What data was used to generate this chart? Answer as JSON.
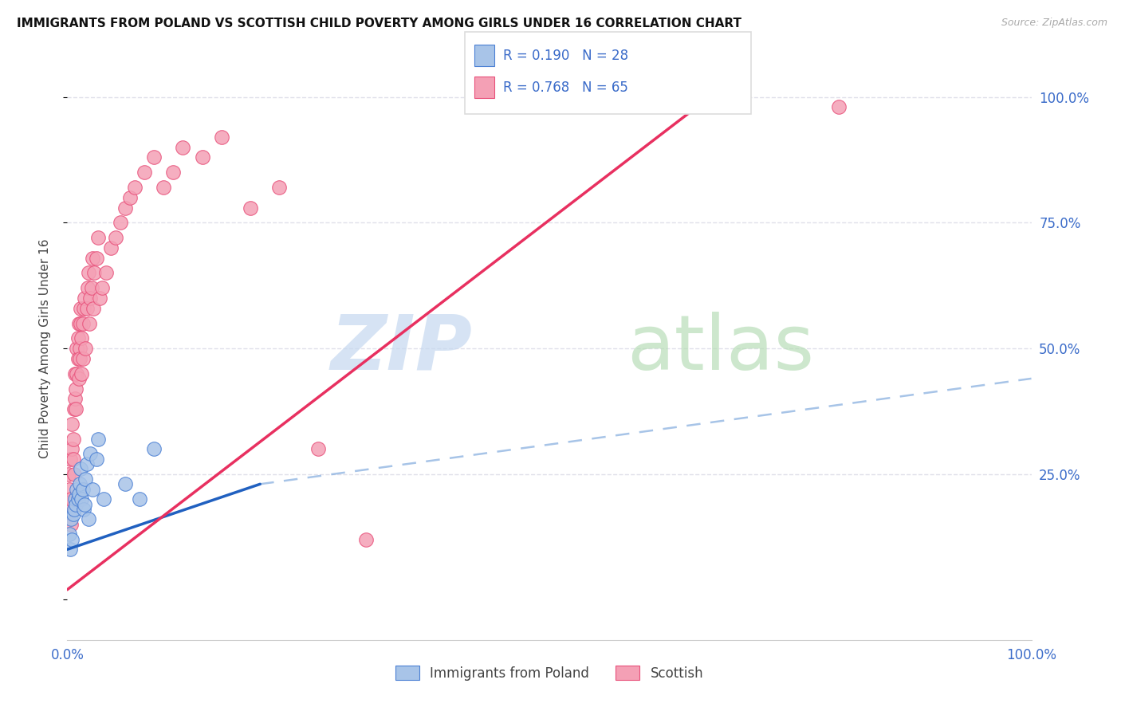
{
  "title": "IMMIGRANTS FROM POLAND VS SCOTTISH CHILD POVERTY AMONG GIRLS UNDER 16 CORRELATION CHART",
  "source": "Source: ZipAtlas.com",
  "ylabel": "Child Poverty Among Girls Under 16",
  "ytick_positions": [
    0.0,
    0.25,
    0.5,
    0.75,
    1.0
  ],
  "ytick_labels": [
    "",
    "25.0%",
    "50.0%",
    "75.0%",
    "100.0%"
  ],
  "legend_blue_r": "R = 0.190",
  "legend_blue_n": "N = 28",
  "legend_pink_r": "R = 0.768",
  "legend_pink_n": "N = 65",
  "legend_label_blue": "Immigrants from Poland",
  "legend_label_pink": "Scottish",
  "blue_fill": "#a8c4e8",
  "pink_fill": "#f4a0b5",
  "blue_edge": "#4a7fd4",
  "pink_edge": "#e8507a",
  "blue_line_color": "#2060c0",
  "pink_line_color": "#e83060",
  "dashed_line_color": "#8ab0e0",
  "r_n_color": "#3a6bc9",
  "text_color": "#444444",
  "grid_color": "#e0e0ea",
  "background_color": "#ffffff",
  "blue_scatter_x": [
    0.002,
    0.003,
    0.004,
    0.005,
    0.006,
    0.007,
    0.008,
    0.009,
    0.01,
    0.011,
    0.012,
    0.013,
    0.014,
    0.015,
    0.016,
    0.017,
    0.018,
    0.019,
    0.02,
    0.022,
    0.024,
    0.026,
    0.03,
    0.032,
    0.038,
    0.06,
    0.075,
    0.09
  ],
  "blue_scatter_y": [
    0.13,
    0.1,
    0.16,
    0.12,
    0.17,
    0.18,
    0.2,
    0.19,
    0.22,
    0.2,
    0.21,
    0.23,
    0.26,
    0.2,
    0.22,
    0.18,
    0.19,
    0.24,
    0.27,
    0.16,
    0.29,
    0.22,
    0.28,
    0.32,
    0.2,
    0.23,
    0.2,
    0.3
  ],
  "pink_scatter_x": [
    0.001,
    0.002,
    0.002,
    0.003,
    0.004,
    0.004,
    0.005,
    0.005,
    0.006,
    0.006,
    0.007,
    0.007,
    0.008,
    0.008,
    0.009,
    0.009,
    0.01,
    0.01,
    0.011,
    0.011,
    0.012,
    0.012,
    0.013,
    0.013,
    0.014,
    0.014,
    0.015,
    0.015,
    0.016,
    0.016,
    0.017,
    0.018,
    0.019,
    0.02,
    0.021,
    0.022,
    0.023,
    0.024,
    0.025,
    0.026,
    0.027,
    0.028,
    0.03,
    0.032,
    0.034,
    0.036,
    0.04,
    0.045,
    0.05,
    0.055,
    0.06,
    0.065,
    0.07,
    0.08,
    0.09,
    0.1,
    0.11,
    0.12,
    0.14,
    0.16,
    0.19,
    0.22,
    0.26,
    0.31,
    0.8
  ],
  "pink_scatter_y": [
    0.25,
    0.22,
    0.18,
    0.28,
    0.2,
    0.15,
    0.3,
    0.35,
    0.32,
    0.28,
    0.38,
    0.25,
    0.4,
    0.45,
    0.42,
    0.38,
    0.45,
    0.5,
    0.48,
    0.52,
    0.55,
    0.44,
    0.5,
    0.48,
    0.55,
    0.58,
    0.45,
    0.52,
    0.55,
    0.48,
    0.58,
    0.6,
    0.5,
    0.58,
    0.62,
    0.65,
    0.55,
    0.6,
    0.62,
    0.68,
    0.58,
    0.65,
    0.68,
    0.72,
    0.6,
    0.62,
    0.65,
    0.7,
    0.72,
    0.75,
    0.78,
    0.8,
    0.82,
    0.85,
    0.88,
    0.82,
    0.85,
    0.9,
    0.88,
    0.92,
    0.78,
    0.82,
    0.3,
    0.12,
    0.98
  ],
  "xlim": [
    0.0,
    1.0
  ],
  "ylim": [
    -0.08,
    1.08
  ],
  "blue_line_x": [
    0.0,
    0.2
  ],
  "blue_line_y_start": 0.1,
  "blue_line_y_end": 0.23,
  "dashed_line_x_start": 0.2,
  "dashed_line_x_end": 1.0,
  "dashed_line_y_start": 0.23,
  "dashed_line_y_end": 0.44,
  "pink_line_x": [
    0.0,
    0.68
  ],
  "pink_line_y_start": 0.02,
  "pink_line_y_end": 1.02
}
